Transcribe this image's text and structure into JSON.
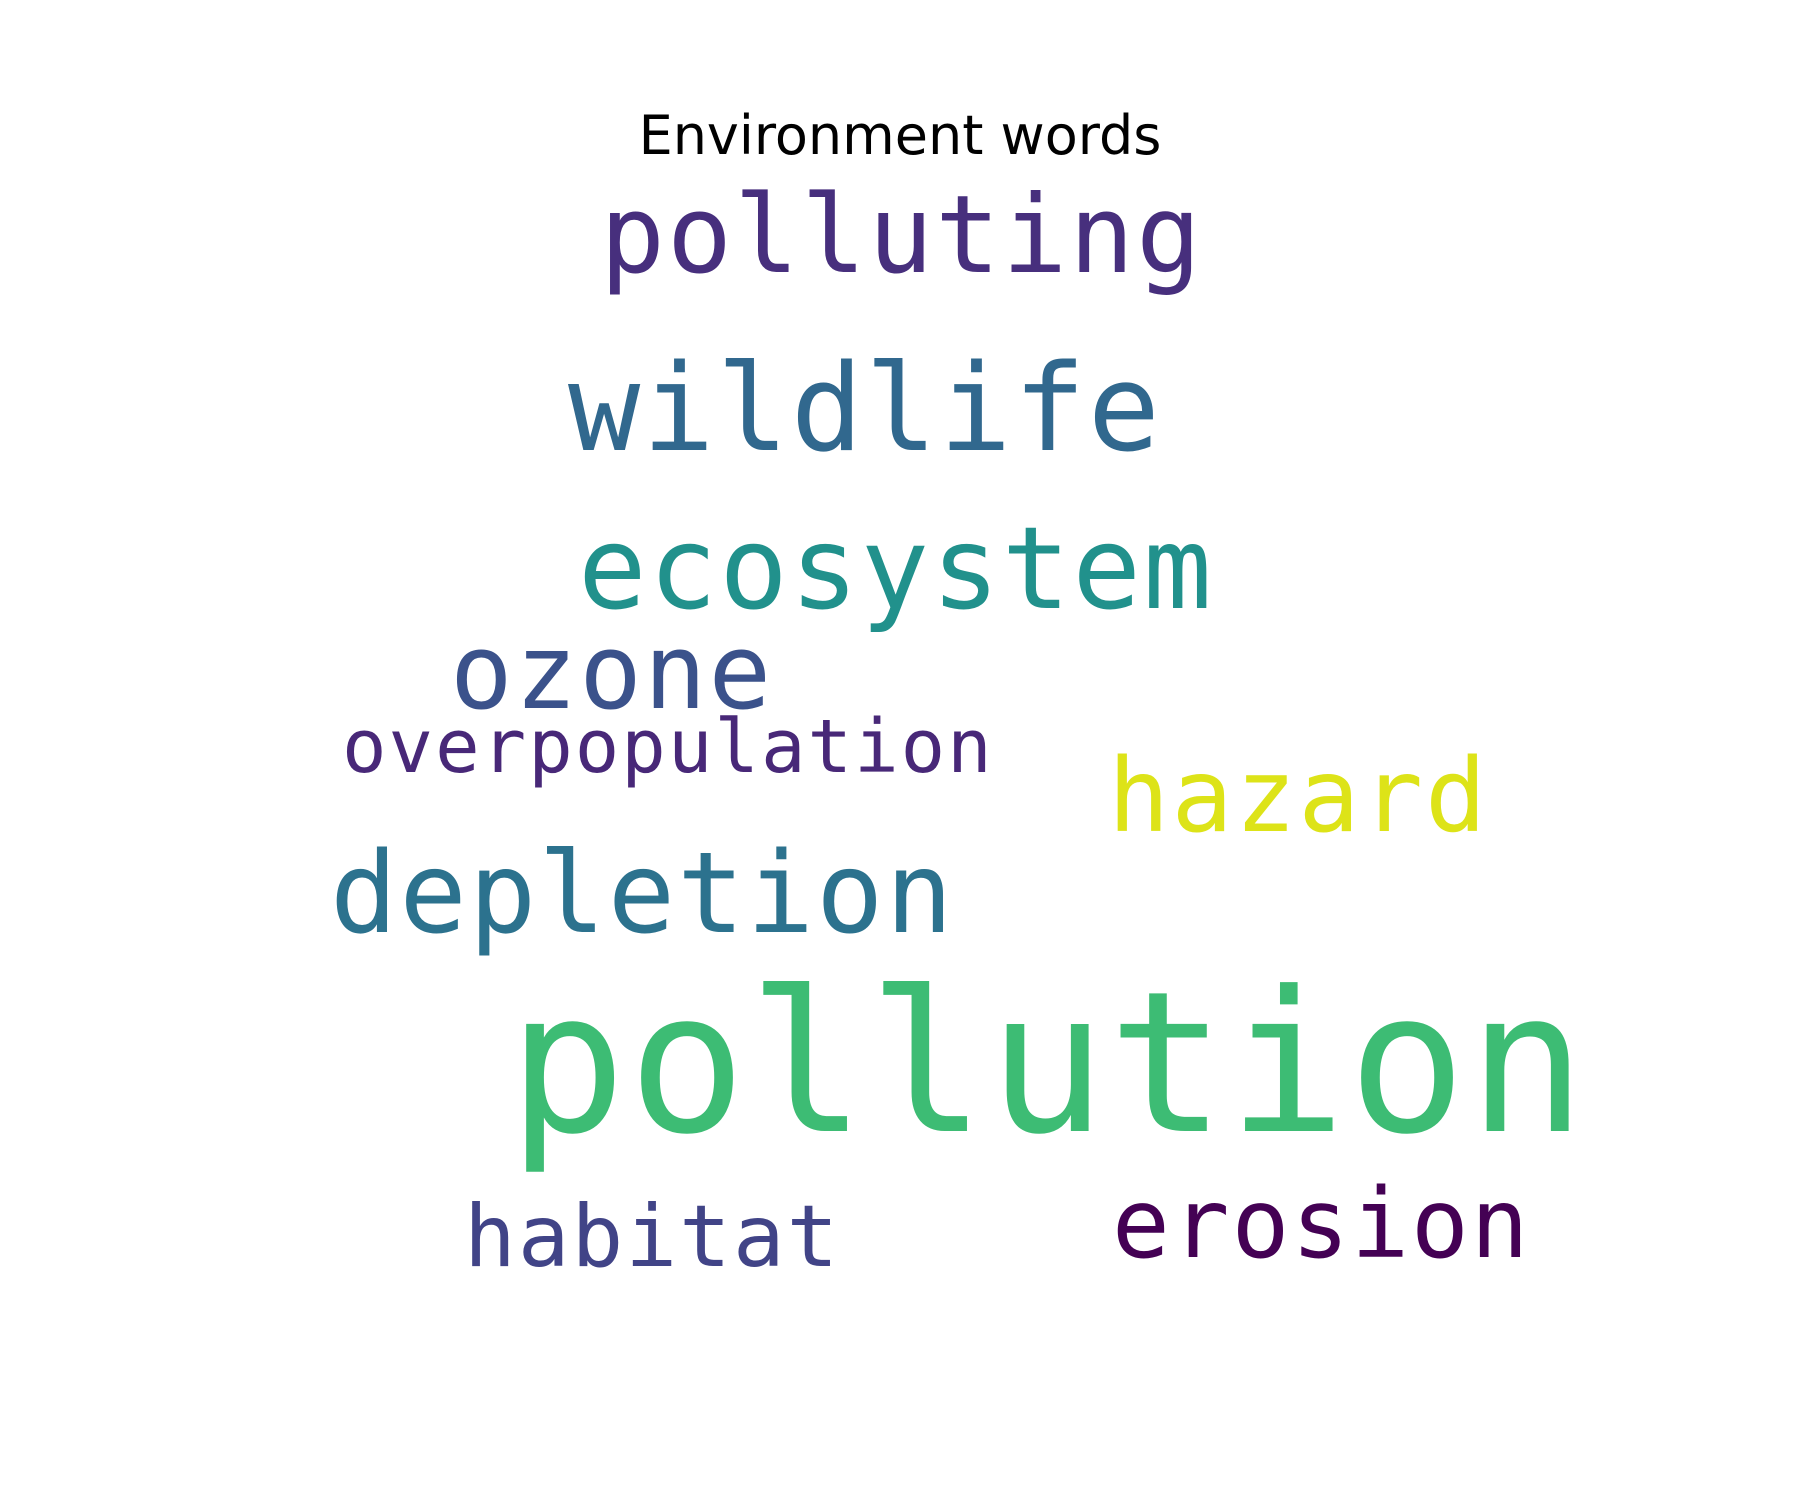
{
  "title": "Environment words",
  "words": [
    {
      "key": "polluting",
      "text": "polluting",
      "color": "#472f7d"
    },
    {
      "key": "wildlife",
      "text": "wildlife",
      "color": "#31688e"
    },
    {
      "key": "ecosystem",
      "text": "ecosystem",
      "color": "#21918c"
    },
    {
      "key": "ozone",
      "text": "ozone",
      "color": "#3b528b"
    },
    {
      "key": "overpopulation",
      "text": "overpopulation",
      "color": "#482878"
    },
    {
      "key": "hazard",
      "text": "hazard",
      "color": "#dde318"
    },
    {
      "key": "depletion",
      "text": "depletion",
      "color": "#2c728e"
    },
    {
      "key": "pollution",
      "text": "pollution",
      "color": "#3dbc74"
    },
    {
      "key": "erosion",
      "text": "erosion",
      "color": "#440154"
    },
    {
      "key": "habitat",
      "text": "habitat",
      "color": "#414487"
    }
  ]
}
